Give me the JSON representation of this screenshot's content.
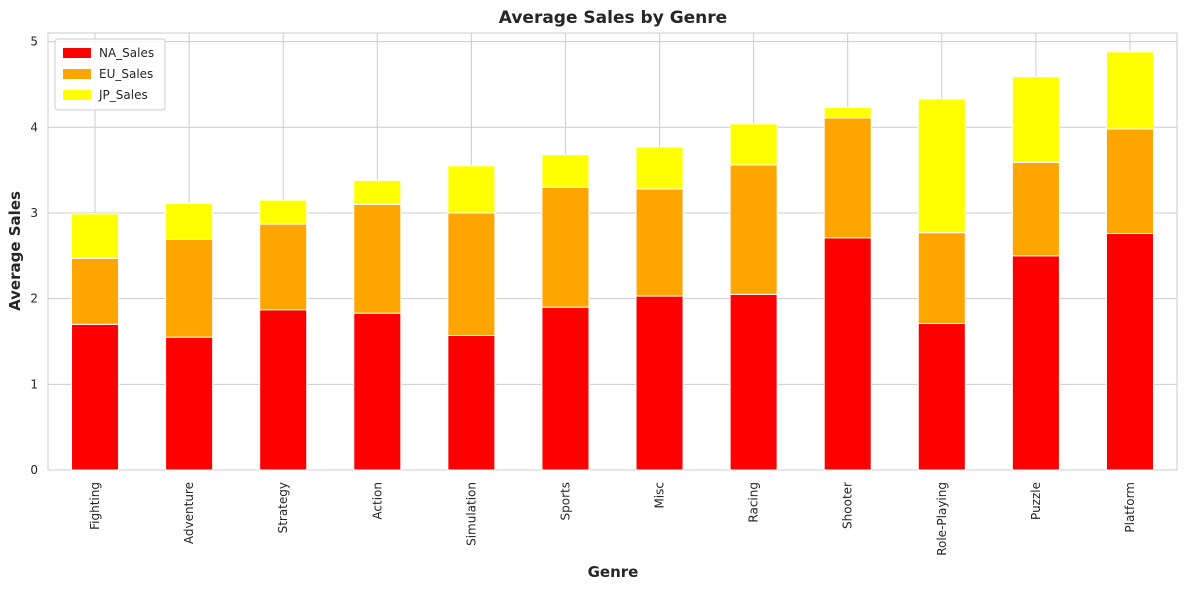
{
  "chart_data": {
    "type": "bar",
    "stacked": true,
    "title": "Average Sales by Genre",
    "xlabel": "Genre",
    "ylabel": "Average Sales",
    "ylim": [
      0,
      5.1
    ],
    "yticks": [
      0,
      1,
      2,
      3,
      4,
      5
    ],
    "grid": true,
    "legend_position": "top-left",
    "categories": [
      "Fighting",
      "Adventure",
      "Strategy",
      "Action",
      "Simulation",
      "Sports",
      "Misc",
      "Racing",
      "Shooter",
      "Role-Playing",
      "Puzzle",
      "Platform"
    ],
    "series": [
      {
        "name": "NA_Sales",
        "color": "#ff0000",
        "values": [
          1.7,
          1.55,
          1.87,
          1.83,
          1.57,
          1.9,
          2.03,
          2.05,
          2.71,
          1.71,
          2.5,
          2.76
        ]
      },
      {
        "name": "EU_Sales",
        "color": "#ffa500",
        "values": [
          0.77,
          1.14,
          1.0,
          1.27,
          1.43,
          1.4,
          1.25,
          1.51,
          1.4,
          1.06,
          1.09,
          1.22
        ]
      },
      {
        "name": "JP_Sales",
        "color": "#ffff00",
        "values": [
          0.52,
          0.42,
          0.28,
          0.28,
          0.55,
          0.38,
          0.49,
          0.48,
          0.12,
          1.56,
          1.0,
          0.9
        ]
      }
    ]
  }
}
